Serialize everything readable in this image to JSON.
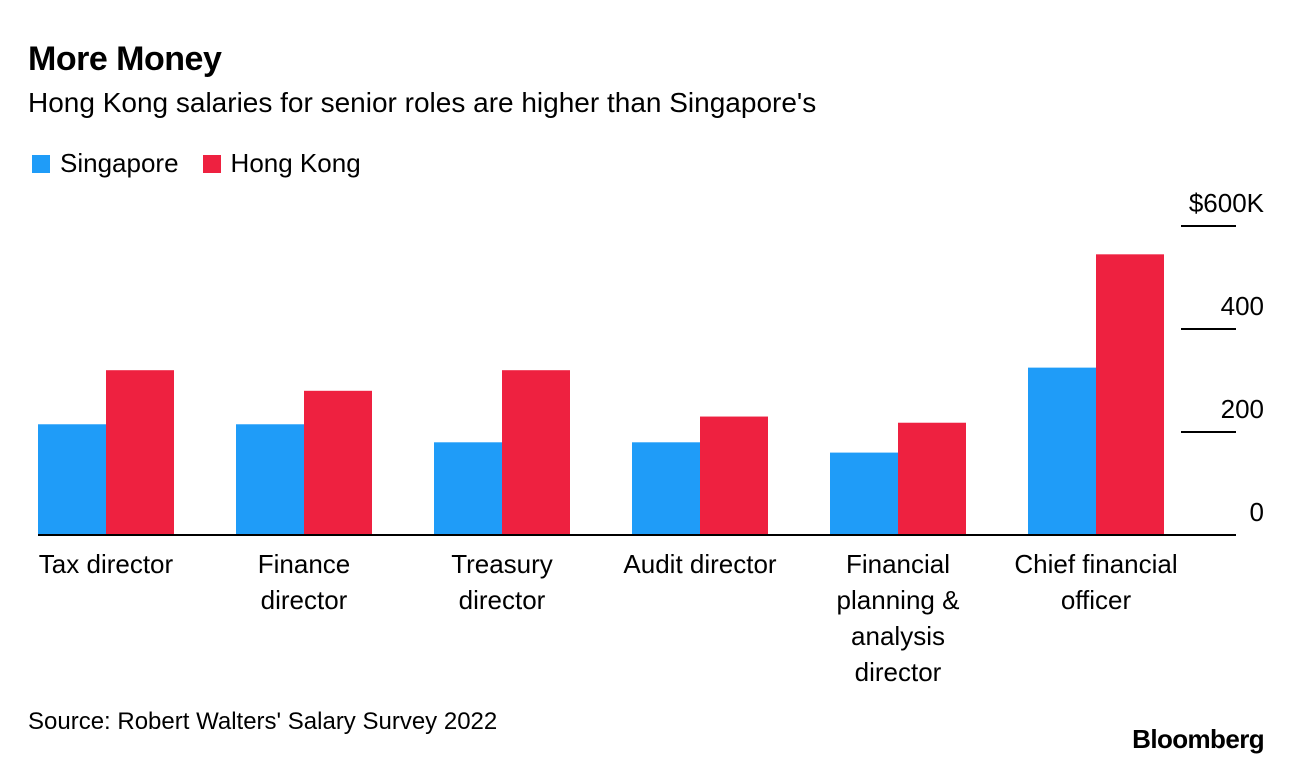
{
  "header": {
    "title": "More Money",
    "subtitle": "Hong Kong salaries for senior roles are higher than Singapore's"
  },
  "legend": {
    "items": [
      {
        "label": "Singapore",
        "color": "#1f9cf8"
      },
      {
        "label": "Hong Kong",
        "color": "#ee2140"
      }
    ]
  },
  "footer": {
    "source": "Source: Robert Walters' Salary Survey 2022",
    "brand": "Bloomberg"
  },
  "chart_data": {
    "type": "bar",
    "title": "More Money",
    "subtitle": "Hong Kong salaries for senior roles are higher than Singapore's",
    "xlabel": "",
    "ylabel": "",
    "ylim": [
      0,
      600
    ],
    "yticks": [
      0,
      200,
      400,
      600
    ],
    "ytick_labels": [
      "0",
      "200",
      "400",
      "$600K"
    ],
    "y_axis_position": "right",
    "legend_position": "top-left",
    "categories": [
      [
        "Tax director"
      ],
      [
        "Finance",
        "director"
      ],
      [
        "Treasury",
        "director"
      ],
      [
        "Audit director"
      ],
      [
        "Financial",
        "planning &",
        "analysis",
        "director"
      ],
      [
        "Chief financial",
        "officer"
      ]
    ],
    "series": [
      {
        "name": "Singapore",
        "color": "#1f9cf8",
        "values": [
          215,
          215,
          180,
          180,
          160,
          325
        ]
      },
      {
        "name": "Hong Kong",
        "color": "#ee2140",
        "values": [
          320,
          280,
          320,
          230,
          218,
          545
        ]
      }
    ]
  }
}
